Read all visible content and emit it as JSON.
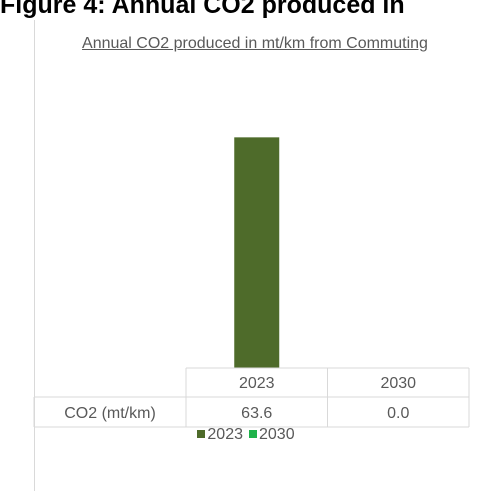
{
  "heading": "Figure 4: Annual CO2 produced in",
  "chart_data": {
    "type": "bar",
    "title": "Annual CO2 produced in mt/km from Commuting",
    "categories": [
      "CO2 (mt/km)"
    ],
    "series": [
      {
        "name": "2023",
        "values": [
          63.6
        ],
        "color": "#4e6b2a"
      },
      {
        "name": "2030",
        "values": [
          0.0
        ],
        "color": "#1fb24a"
      }
    ],
    "data_table": {
      "row_label": "CO2 (mt/km)",
      "column_headers": [
        "2023",
        "2030"
      ],
      "cells": [
        "63.6",
        "0.0"
      ]
    },
    "ylim": [
      0,
      75
    ],
    "legend_position": "bottom",
    "grid": false
  }
}
